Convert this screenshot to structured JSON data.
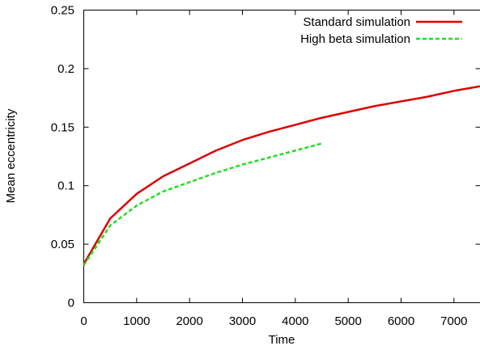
{
  "chart_data": {
    "type": "line",
    "title": "",
    "xlabel": "Time",
    "ylabel": "Mean eccentricity",
    "xlim": [
      0,
      7500
    ],
    "ylim": [
      0,
      0.25
    ],
    "xticks": [
      0,
      1000,
      2000,
      3000,
      4000,
      5000,
      6000,
      7000
    ],
    "xtick_labels": [
      "0",
      "1000",
      "2000",
      "3000",
      "4000",
      "5000",
      "6000",
      "7000"
    ],
    "yticks": [
      0,
      0.05,
      0.1,
      0.15,
      0.2,
      0.25
    ],
    "ytick_labels": [
      "0",
      "0.05",
      "0.1",
      "0.15",
      "0.2",
      "0.25"
    ],
    "grid": false,
    "legend_position": "top-right",
    "series": [
      {
        "name": "Standard simulation",
        "color": "#dd0000",
        "style": "solid",
        "x": [
          0,
          500,
          1000,
          1500,
          2000,
          2500,
          3000,
          3500,
          4000,
          4500,
          5000,
          5500,
          6000,
          6500,
          7000,
          7500
        ],
        "y": [
          0.033,
          0.072,
          0.093,
          0.108,
          0.119,
          0.13,
          0.139,
          0.146,
          0.152,
          0.158,
          0.163,
          0.168,
          0.172,
          0.176,
          0.181,
          0.185
        ]
      },
      {
        "name": "High beta simulation",
        "color": "#22dd22",
        "style": "dashed",
        "x": [
          0,
          500,
          1000,
          1500,
          2000,
          2500,
          3000,
          3500,
          4000,
          4500
        ],
        "y": [
          0.032,
          0.066,
          0.083,
          0.095,
          0.103,
          0.111,
          0.118,
          0.124,
          0.13,
          0.136
        ]
      }
    ]
  }
}
